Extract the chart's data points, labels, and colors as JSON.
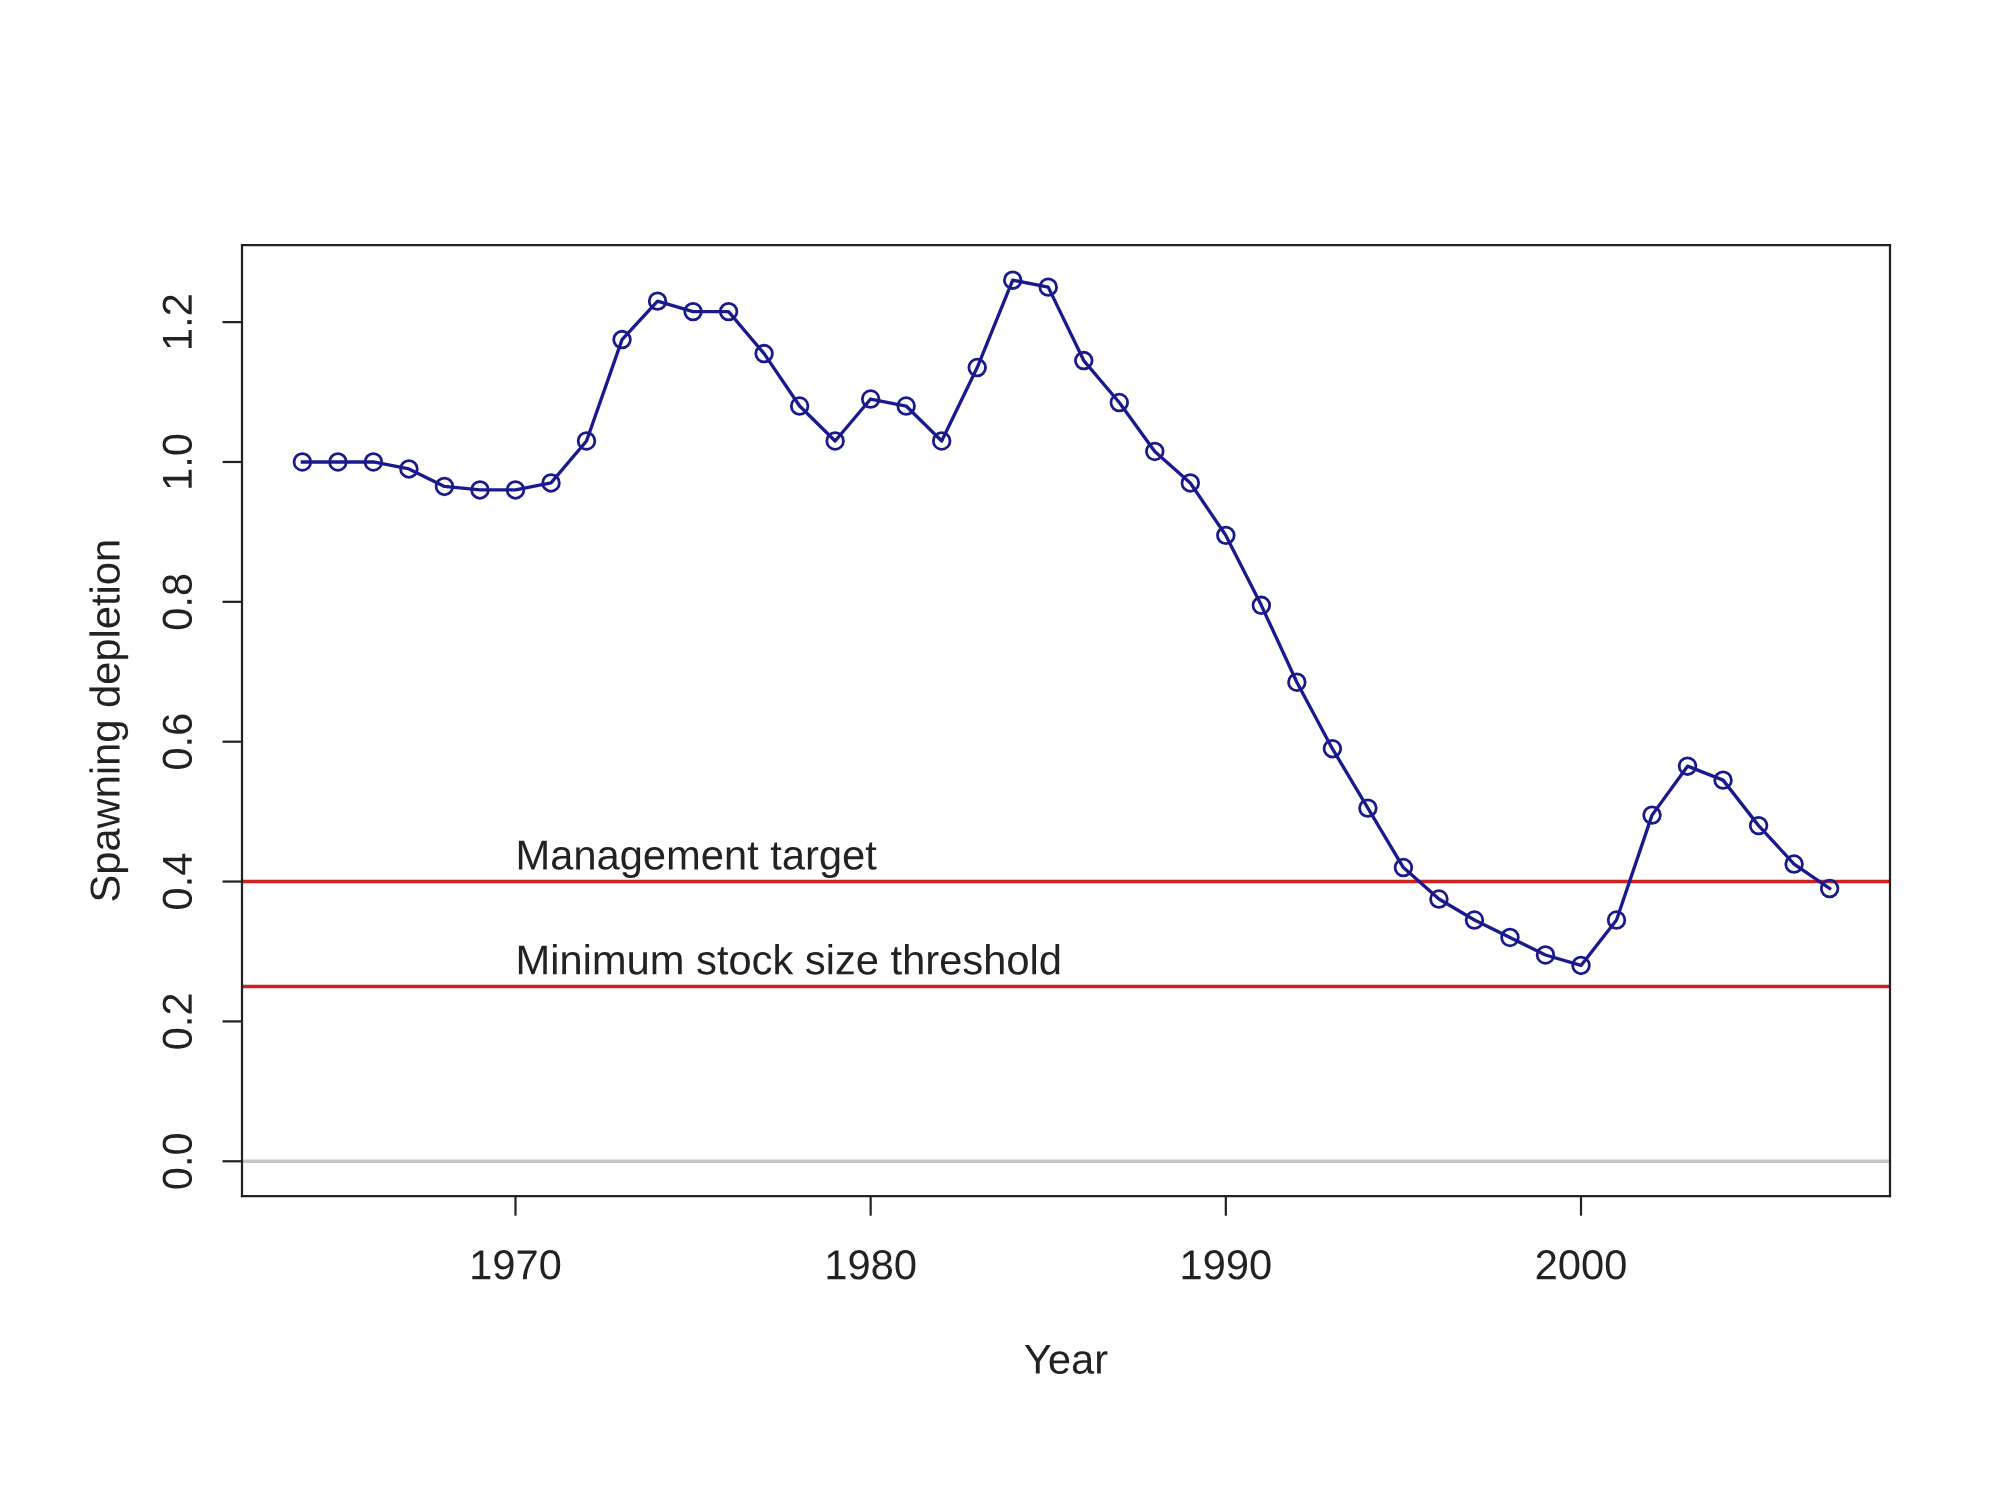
{
  "chart_data": {
    "type": "line",
    "xlabel": "Year",
    "ylabel": "Spawning depletion",
    "x": [
      1964,
      1965,
      1966,
      1967,
      1968,
      1969,
      1970,
      1971,
      1972,
      1973,
      1974,
      1975,
      1976,
      1977,
      1978,
      1979,
      1980,
      1981,
      1982,
      1983,
      1984,
      1985,
      1986,
      1987,
      1988,
      1989,
      1990,
      1991,
      1992,
      1993,
      1994,
      1995,
      1996,
      1997,
      1998,
      1999,
      2000,
      2001,
      2002,
      2003,
      2004,
      2005,
      2006,
      2007
    ],
    "series": [
      {
        "color": "#1a1a8c",
        "values": [
          1.0,
          1.0,
          1.0,
          0.99,
          0.965,
          0.96,
          0.96,
          0.97,
          1.03,
          1.175,
          1.23,
          1.215,
          1.215,
          1.155,
          1.08,
          1.03,
          1.09,
          1.08,
          1.03,
          1.135,
          1.26,
          1.25,
          1.145,
          1.085,
          1.015,
          0.97,
          0.895,
          0.795,
          0.685,
          0.59,
          0.505,
          0.42,
          0.375,
          0.345,
          0.32,
          0.295,
          0.28,
          0.345,
          0.495,
          0.565,
          0.545,
          0.48,
          0.425,
          0.39
        ]
      }
    ],
    "marker": "circle",
    "line_style": "solid",
    "grid": false,
    "legend": false,
    "xlim": [
      1962.3,
      2008.7
    ],
    "ylim": [
      -0.05,
      1.31
    ],
    "xticks": [
      1970,
      1980,
      1990,
      2000
    ],
    "yticks": [
      {
        "value": 0,
        "label": "0.0"
      },
      {
        "value": 0.2,
        "label": "0.2"
      },
      {
        "value": 0.4,
        "label": "0.4"
      },
      {
        "value": 0.6,
        "label": "0.6"
      },
      {
        "value": 0.8,
        "label": "0.8"
      },
      {
        "value": 1.0,
        "label": "1.0"
      },
      {
        "value": 1.2,
        "label": "1.2"
      }
    ],
    "ref_lines": [
      {
        "axis": "y",
        "value": 0.4,
        "label": "Management target",
        "color": "#cc2222"
      },
      {
        "axis": "y",
        "value": 0.25,
        "label": "Minimum stock size threshold",
        "color": "#cc2222"
      },
      {
        "axis": "y",
        "value": 0,
        "color": "#c8c8c8"
      }
    ]
  }
}
